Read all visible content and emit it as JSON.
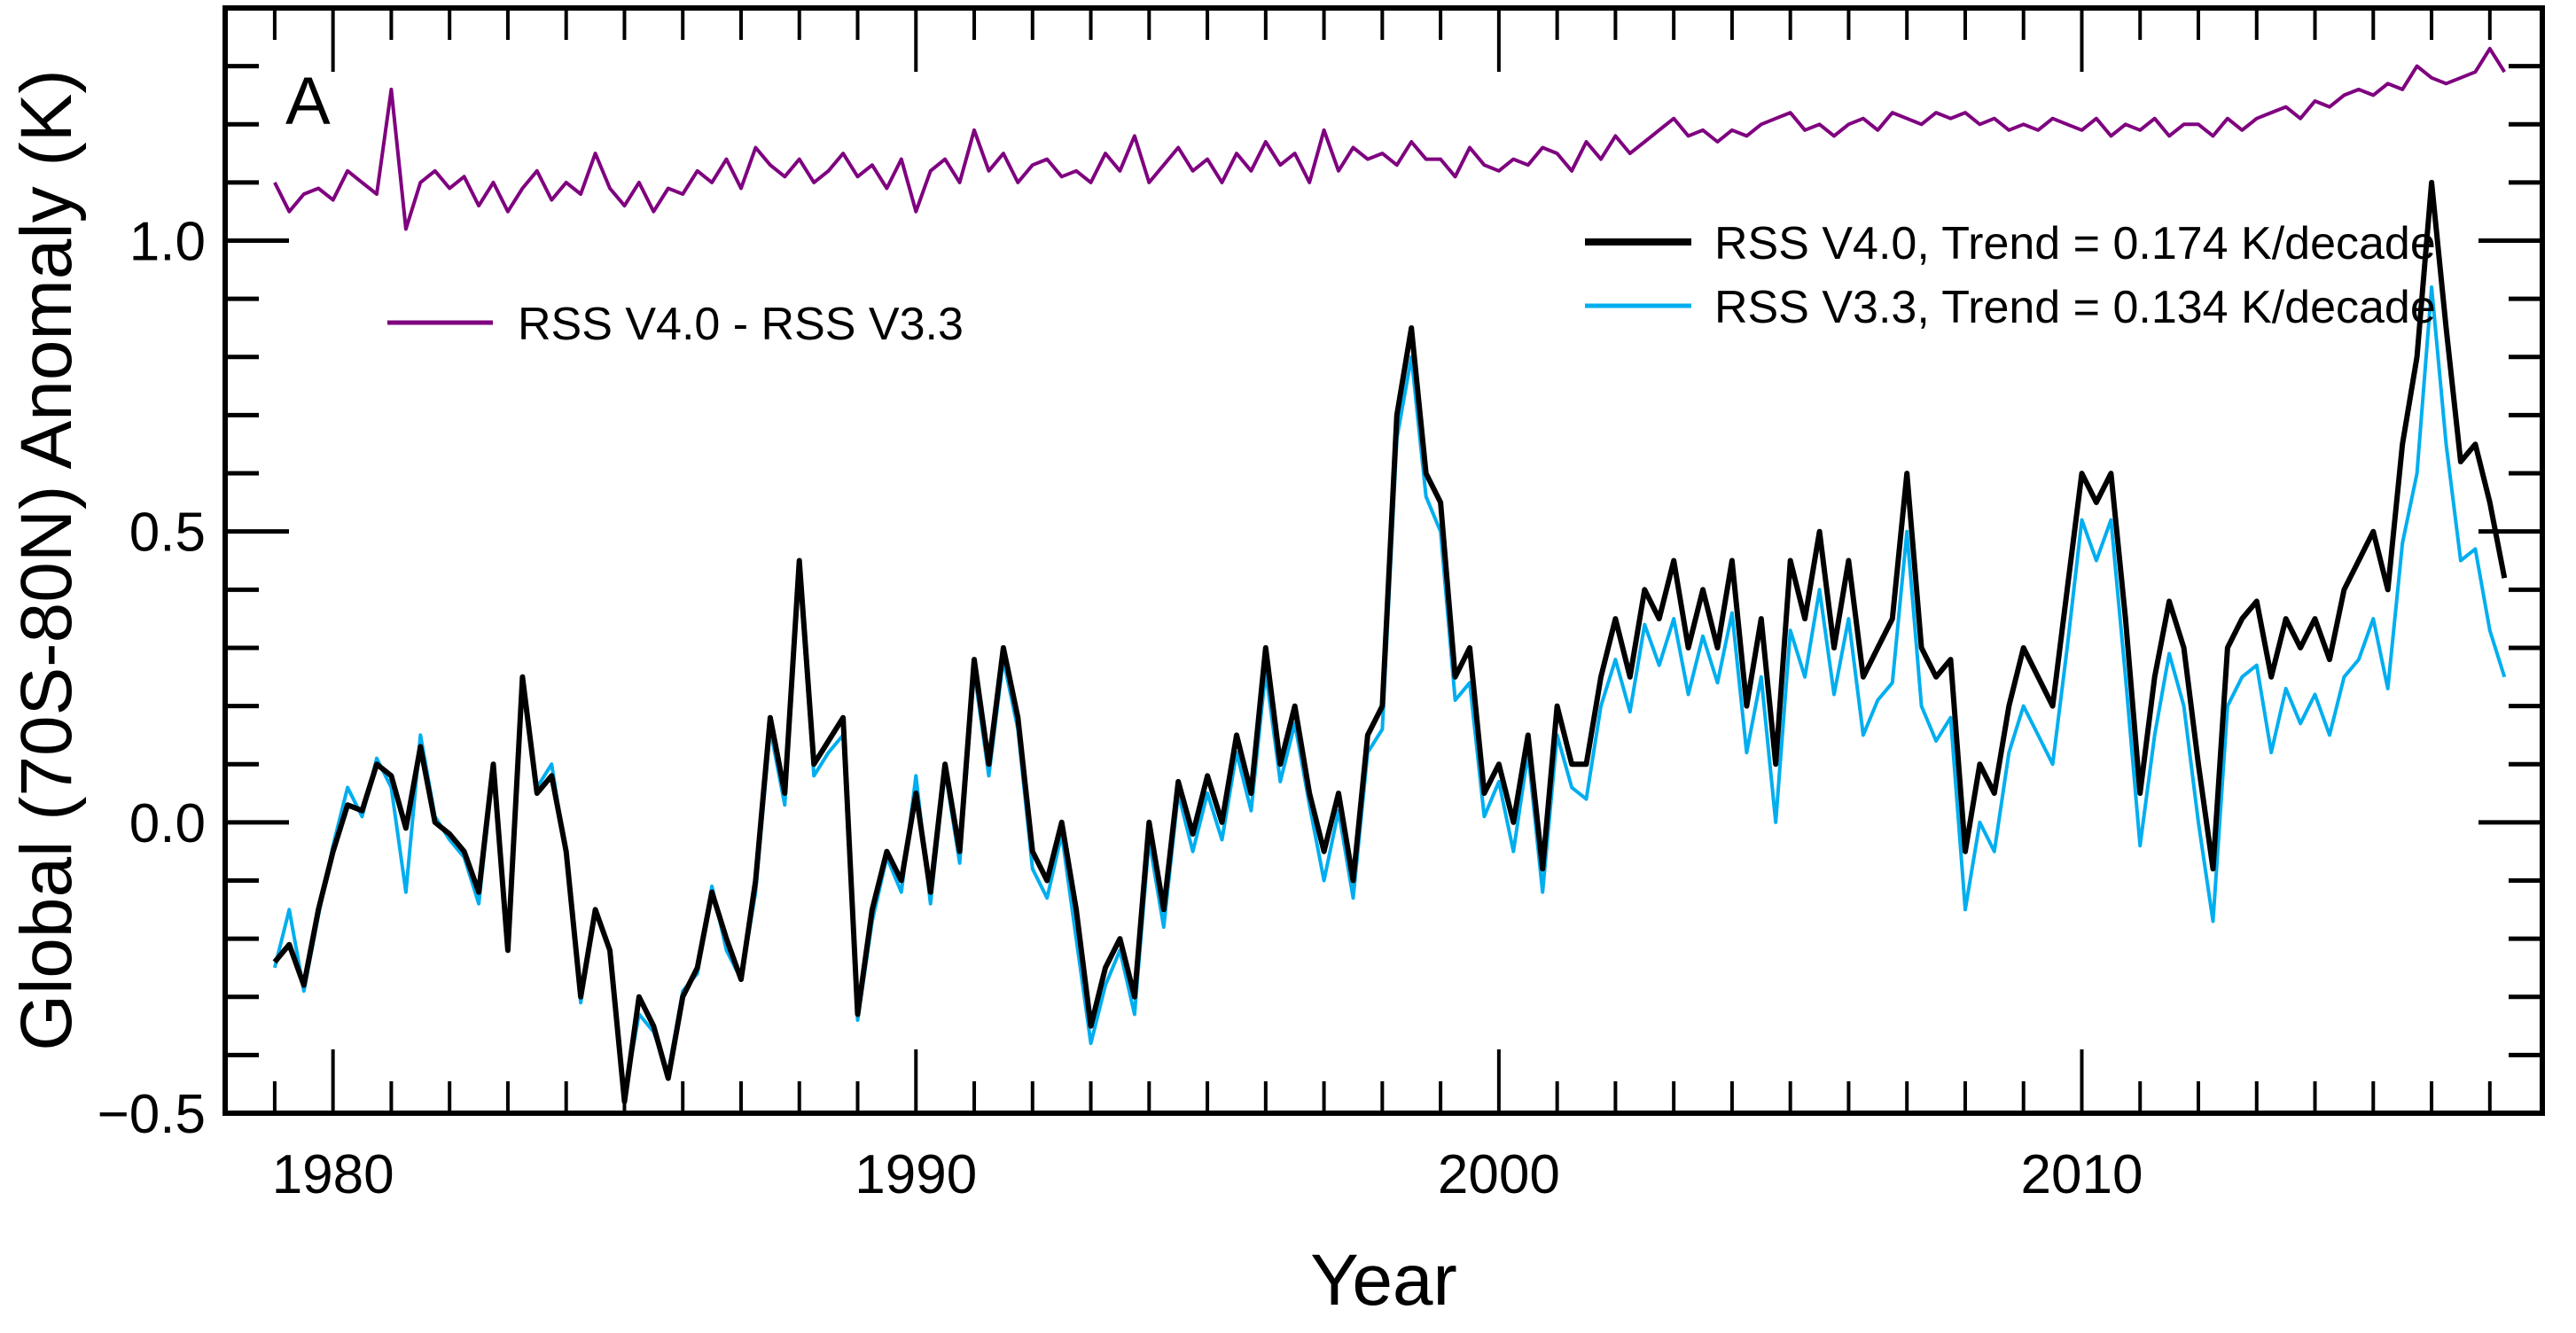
{
  "chart_data": {
    "type": "line",
    "panel_label": "A",
    "xlabel": "Year",
    "ylabel": "Global (70S-80N) Anomaly (K)",
    "xlim": [
      1978.15,
      2017.9
    ],
    "ylim": [
      -0.5,
      1.4
    ],
    "x_ticks": [
      1980,
      1990,
      2000,
      2010
    ],
    "x_tick_labels": [
      "1980",
      "1990",
      "2000",
      "2010"
    ],
    "y_ticks": [
      -0.5,
      0.0,
      0.5,
      1.0
    ],
    "y_tick_labels": [
      "−0.5",
      "0.0",
      "0.5",
      "1.0"
    ],
    "x_minor_step": 1,
    "y_minor_step": 0.1,
    "grid": false,
    "x_start": 1979.0,
    "x_step": 0.25,
    "series": [
      {
        "name": "RSS V4.0 - RSS V3.3",
        "legend_label": "RSS V4.0 - RSS V3.3",
        "color": "#7f007f",
        "values": [
          1.1,
          1.05,
          1.08,
          1.09,
          1.07,
          1.12,
          1.1,
          1.08,
          1.26,
          1.02,
          1.1,
          1.12,
          1.09,
          1.11,
          1.06,
          1.1,
          1.05,
          1.09,
          1.12,
          1.07,
          1.1,
          1.08,
          1.15,
          1.09,
          1.06,
          1.1,
          1.05,
          1.09,
          1.08,
          1.12,
          1.1,
          1.14,
          1.09,
          1.16,
          1.13,
          1.11,
          1.14,
          1.1,
          1.12,
          1.15,
          1.11,
          1.13,
          1.09,
          1.14,
          1.05,
          1.12,
          1.14,
          1.1,
          1.19,
          1.12,
          1.15,
          1.1,
          1.13,
          1.14,
          1.11,
          1.12,
          1.1,
          1.15,
          1.12,
          1.18,
          1.1,
          1.13,
          1.16,
          1.12,
          1.14,
          1.1,
          1.15,
          1.12,
          1.17,
          1.13,
          1.15,
          1.1,
          1.19,
          1.12,
          1.16,
          1.14,
          1.15,
          1.13,
          1.17,
          1.14,
          1.14,
          1.11,
          1.16,
          1.13,
          1.12,
          1.14,
          1.13,
          1.16,
          1.15,
          1.12,
          1.17,
          1.14,
          1.18,
          1.15,
          1.17,
          1.19,
          1.21,
          1.18,
          1.19,
          1.17,
          1.19,
          1.18,
          1.2,
          1.21,
          1.22,
          1.19,
          1.2,
          1.18,
          1.2,
          1.21,
          1.19,
          1.22,
          1.21,
          1.2,
          1.22,
          1.21,
          1.22,
          1.2,
          1.21,
          1.19,
          1.2,
          1.19,
          1.21,
          1.2,
          1.19,
          1.21,
          1.18,
          1.2,
          1.19,
          1.21,
          1.18,
          1.2,
          1.2,
          1.18,
          1.21,
          1.19,
          1.21,
          1.22,
          1.23,
          1.21,
          1.24,
          1.23,
          1.25,
          1.26,
          1.25,
          1.27,
          1.26,
          1.3,
          1.28,
          1.27,
          1.28,
          1.29,
          1.33,
          1.29
        ]
      },
      {
        "name": "RSS V3.3",
        "legend_label": "RSS V3.3, Trend = 0.134 K/decade",
        "trend_k_per_decade": 0.134,
        "color": "#00aeef",
        "values": [
          -0.25,
          -0.15,
          -0.29,
          -0.16,
          -0.04,
          0.06,
          0.01,
          0.11,
          0.06,
          -0.12,
          0.15,
          0.01,
          -0.03,
          -0.06,
          -0.14,
          0.09,
          -0.22,
          0.23,
          0.06,
          0.1,
          -0.06,
          -0.31,
          -0.15,
          -0.22,
          -0.47,
          -0.33,
          -0.36,
          -0.43,
          -0.29,
          -0.26,
          -0.11,
          -0.22,
          -0.27,
          -0.12,
          0.16,
          0.03,
          0.43,
          0.08,
          0.12,
          0.15,
          -0.34,
          -0.17,
          -0.06,
          -0.12,
          0.08,
          -0.14,
          0.09,
          -0.07,
          0.26,
          0.08,
          0.28,
          0.16,
          -0.08,
          -0.13,
          -0.02,
          -0.2,
          -0.38,
          -0.28,
          -0.22,
          -0.33,
          -0.03,
          -0.18,
          0.05,
          -0.05,
          0.05,
          -0.03,
          0.12,
          0.02,
          0.26,
          0.07,
          0.17,
          0.03,
          -0.1,
          0.02,
          -0.13,
          0.12,
          0.16,
          0.66,
          0.8,
          0.56,
          0.5,
          0.21,
          0.24,
          0.01,
          0.07,
          -0.05,
          0.12,
          -0.12,
          0.15,
          0.06,
          0.04,
          0.2,
          0.28,
          0.19,
          0.34,
          0.27,
          0.35,
          0.22,
          0.32,
          0.24,
          0.36,
          0.12,
          0.25,
          0.0,
          0.33,
          0.25,
          0.4,
          0.22,
          0.35,
          0.15,
          0.21,
          0.24,
          0.5,
          0.2,
          0.14,
          0.18,
          -0.15,
          0.0,
          -0.05,
          0.12,
          0.2,
          0.15,
          0.1,
          0.3,
          0.52,
          0.45,
          0.52,
          0.25,
          -0.04,
          0.15,
          0.29,
          0.2,
          0.0,
          -0.17,
          0.2,
          0.25,
          0.27,
          0.12,
          0.23,
          0.17,
          0.22,
          0.15,
          0.25,
          0.28,
          0.35,
          0.23,
          0.48,
          0.6,
          0.92,
          0.65,
          0.45,
          0.47,
          0.33,
          0.25
        ]
      },
      {
        "name": "RSS V4.0",
        "legend_label": "RSS V4.0, Trend = 0.174 K/decade",
        "trend_k_per_decade": 0.174,
        "color": "#000000",
        "values": [
          -0.24,
          -0.21,
          -0.28,
          -0.15,
          -0.05,
          0.03,
          0.02,
          0.1,
          0.08,
          -0.01,
          0.13,
          0.0,
          -0.02,
          -0.05,
          -0.12,
          0.1,
          -0.22,
          0.25,
          0.05,
          0.08,
          -0.05,
          -0.3,
          -0.15,
          -0.22,
          -0.48,
          -0.3,
          -0.35,
          -0.44,
          -0.3,
          -0.25,
          -0.12,
          -0.2,
          -0.27,
          -0.1,
          0.18,
          0.05,
          0.45,
          0.1,
          0.14,
          0.18,
          -0.33,
          -0.15,
          -0.05,
          -0.1,
          0.05,
          -0.12,
          0.1,
          -0.05,
          0.28,
          0.1,
          0.3,
          0.18,
          -0.05,
          -0.1,
          0.0,
          -0.15,
          -0.35,
          -0.25,
          -0.2,
          -0.3,
          0.0,
          -0.15,
          0.07,
          -0.02,
          0.08,
          0.0,
          0.15,
          0.05,
          0.3,
          0.1,
          0.2,
          0.05,
          -0.05,
          0.05,
          -0.1,
          0.15,
          0.2,
          0.7,
          0.85,
          0.6,
          0.55,
          0.25,
          0.3,
          0.05,
          0.1,
          0.0,
          0.15,
          -0.08,
          0.2,
          0.1,
          0.1,
          0.25,
          0.35,
          0.25,
          0.4,
          0.35,
          0.45,
          0.3,
          0.4,
          0.3,
          0.45,
          0.2,
          0.35,
          0.1,
          0.45,
          0.35,
          0.5,
          0.3,
          0.45,
          0.25,
          0.3,
          0.35,
          0.6,
          0.3,
          0.25,
          0.28,
          -0.05,
          0.1,
          0.05,
          0.2,
          0.3,
          0.25,
          0.2,
          0.4,
          0.6,
          0.55,
          0.6,
          0.35,
          0.05,
          0.25,
          0.38,
          0.3,
          0.1,
          -0.08,
          0.3,
          0.35,
          0.38,
          0.25,
          0.35,
          0.3,
          0.35,
          0.28,
          0.4,
          0.45,
          0.5,
          0.4,
          0.65,
          0.8,
          1.1,
          0.85,
          0.62,
          0.65,
          0.55,
          0.42
        ]
      }
    ]
  }
}
